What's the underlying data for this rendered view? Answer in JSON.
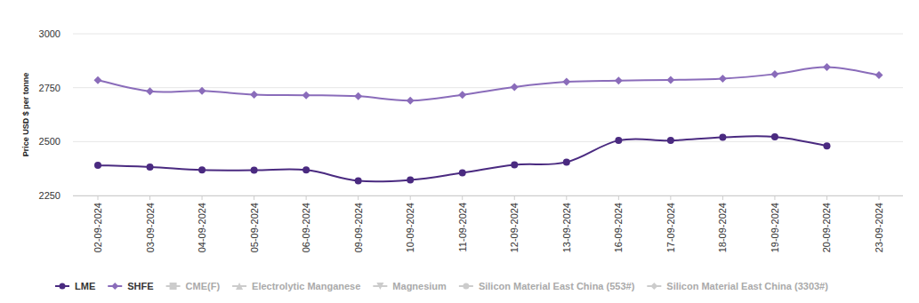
{
  "chart_data": {
    "type": "line",
    "y_label": "Price USD $ per tonne",
    "categories": [
      "02-09-2024",
      "03-09-2024",
      "04-09-2024",
      "05-09-2024",
      "06-09-2024",
      "09-09-2024",
      "10-09-2024",
      "11-09-2024",
      "12-09-2024",
      "13-09-2024",
      "16-09-2024",
      "17-09-2024",
      "18-09-2024",
      "19-09-2024",
      "20-09-2024",
      "23-09-2024"
    ],
    "series": [
      {
        "name": "LME",
        "color": "#4a2a80",
        "marker": "circle",
        "line_style": "solid",
        "values": [
          2390,
          2382,
          2368,
          2367,
          2368,
          2318,
          2322,
          2355,
          2392,
          2405,
          2505,
          2505,
          2520,
          2522,
          2480,
          null
        ]
      },
      {
        "name": "SHFE",
        "color": "#8a6cba",
        "marker": "diamond",
        "line_style": "solid",
        "values": [
          2785,
          2733,
          2735,
          2718,
          2715,
          2710,
          2690,
          2717,
          2753,
          2777,
          2783,
          2786,
          2792,
          2813,
          2845,
          2808
        ]
      },
      {
        "name": "CME(F)",
        "color": "#cccccc",
        "marker": "square",
        "line_style": "solid",
        "values": [
          null,
          null,
          null,
          null,
          null,
          null,
          null,
          null,
          null,
          null,
          null,
          null,
          null,
          null,
          null,
          null
        ]
      },
      {
        "name": "Electrolytic Manganese",
        "color": "#cccccc",
        "marker": "triangle",
        "line_style": "solid",
        "values": [
          null,
          null,
          null,
          null,
          null,
          null,
          null,
          null,
          null,
          null,
          null,
          null,
          null,
          null,
          null,
          null
        ]
      },
      {
        "name": "Magnesium",
        "color": "#cccccc",
        "marker": "triangle-down",
        "line_style": "solid",
        "values": [
          null,
          null,
          null,
          null,
          null,
          null,
          null,
          null,
          null,
          null,
          null,
          null,
          null,
          null,
          null,
          null
        ]
      },
      {
        "name": "Silicon Material East China (553#)",
        "color": "#cccccc",
        "marker": "circle",
        "line_style": "solid",
        "values": [
          null,
          null,
          null,
          null,
          null,
          null,
          null,
          null,
          null,
          null,
          null,
          null,
          null,
          null,
          null,
          null
        ]
      },
      {
        "name": "Silicon Material East China (3303#)",
        "color": "#cccccc",
        "marker": "diamond",
        "line_style": "solid",
        "values": [
          null,
          null,
          null,
          null,
          null,
          null,
          null,
          null,
          null,
          null,
          null,
          null,
          null,
          null,
          null,
          null
        ]
      }
    ],
    "ylim": [
      2250,
      3000
    ],
    "yticks": [
      2250,
      2500,
      2750,
      3000
    ],
    "grid": true,
    "legend": "bottom"
  }
}
